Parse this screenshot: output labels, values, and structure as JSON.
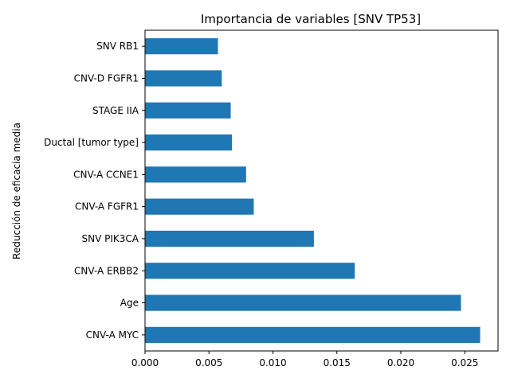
{
  "chart_data": {
    "type": "bar",
    "orientation": "horizontal",
    "title": "Importancia de variables [SNV TP53]",
    "xlabel": "",
    "ylabel": "Reducción de eficacia media",
    "categories": [
      "CNV-A MYC",
      "Age",
      "CNV-A ERBB2",
      "SNV PIK3CA",
      "CNV-A FGFR1",
      "CNV-A CCNE1",
      "Ductal [tumor type]",
      "STAGE IIA",
      "CNV-D FGFR1",
      "SNV RB1"
    ],
    "values": [
      0.0262,
      0.0247,
      0.0164,
      0.0132,
      0.0085,
      0.0079,
      0.0068,
      0.0067,
      0.006,
      0.0057
    ],
    "xlim": [
      0,
      0.0276
    ],
    "xticks": [
      0.0,
      0.005,
      0.01,
      0.015,
      0.02,
      0.025
    ],
    "xtick_labels": [
      "0.000",
      "0.005",
      "0.010",
      "0.015",
      "0.020",
      "0.025"
    ],
    "grid": false,
    "legend": "none",
    "bar_color": "#1f77b4"
  }
}
